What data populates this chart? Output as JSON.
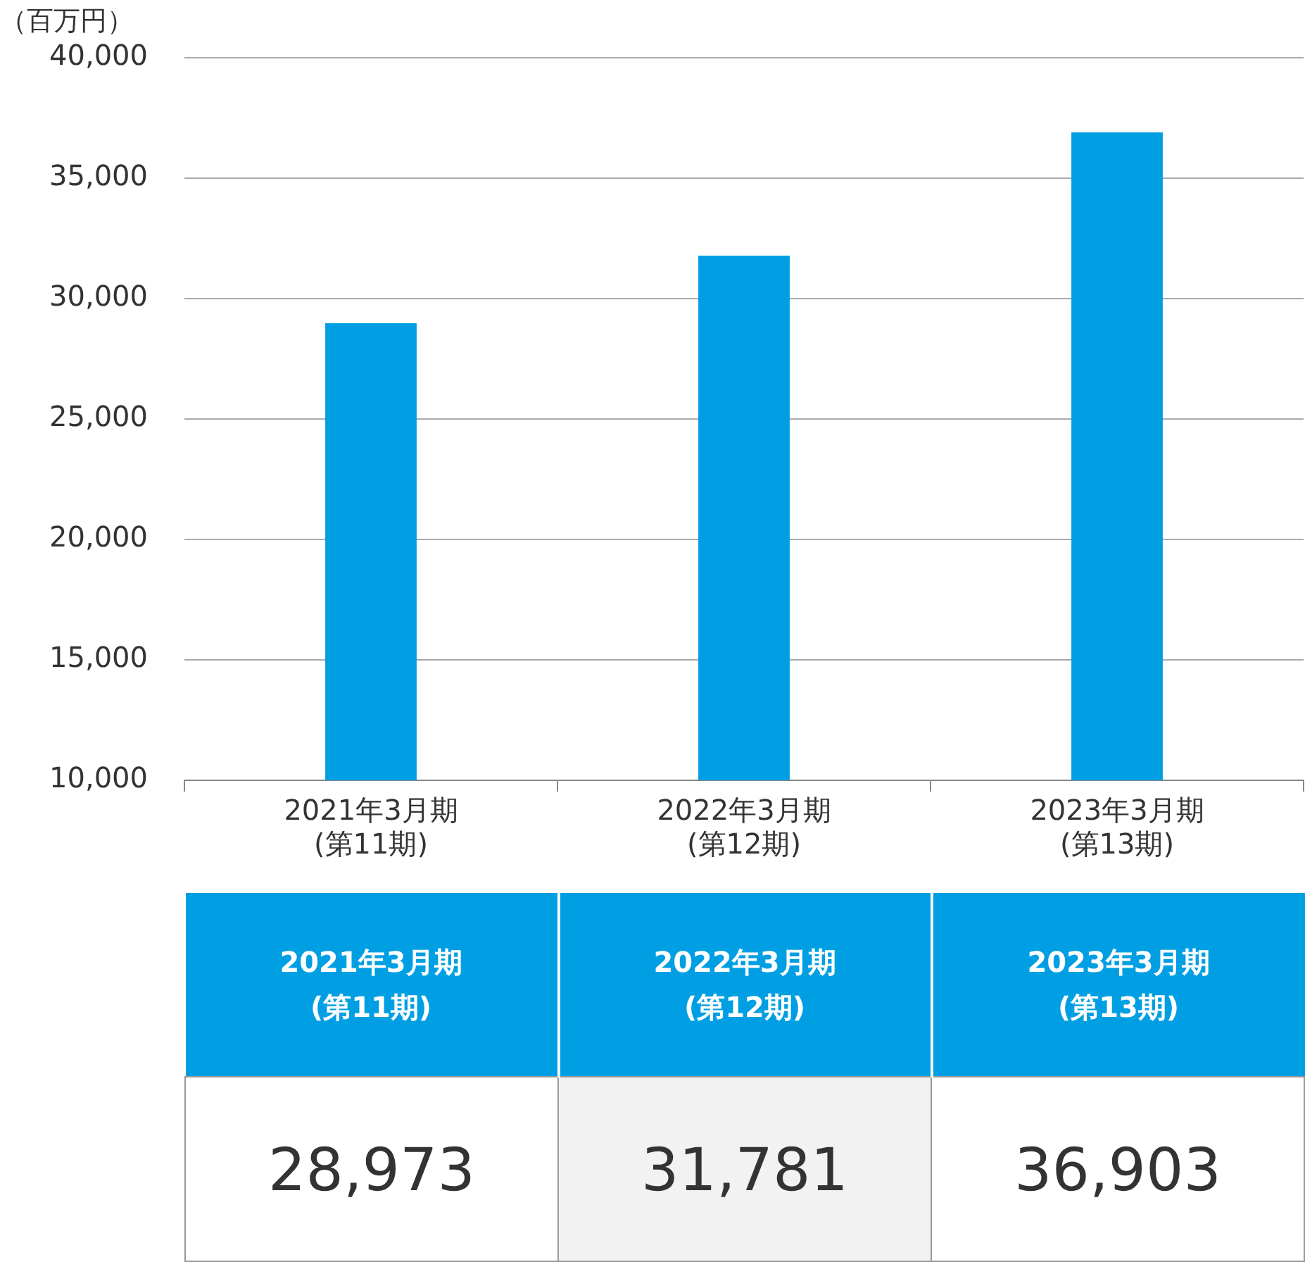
{
  "chart_data": {
    "type": "bar",
    "ylabel": "（百万円）",
    "categories": [
      "2021年3月期\n(第11期)",
      "2022年3月期\n(第12期)",
      "2023年3月期\n(第13期)"
    ],
    "values": [
      28973,
      31781,
      36903
    ],
    "color": "#009fe3",
    "ylim": [
      10000,
      40000
    ],
    "yticks": [
      {
        "value": 10000,
        "label": "10,000"
      },
      {
        "value": 15000,
        "label": "15,000"
      },
      {
        "value": 20000,
        "label": "20,000"
      },
      {
        "value": 25000,
        "label": "25,000"
      },
      {
        "value": 30000,
        "label": "30,000"
      },
      {
        "value": 35000,
        "label": "35,000"
      },
      {
        "value": 40000,
        "label": "40,000"
      }
    ],
    "grid": "y",
    "value_labels": [
      "28,973",
      "31,781",
      "36,903"
    ]
  }
}
